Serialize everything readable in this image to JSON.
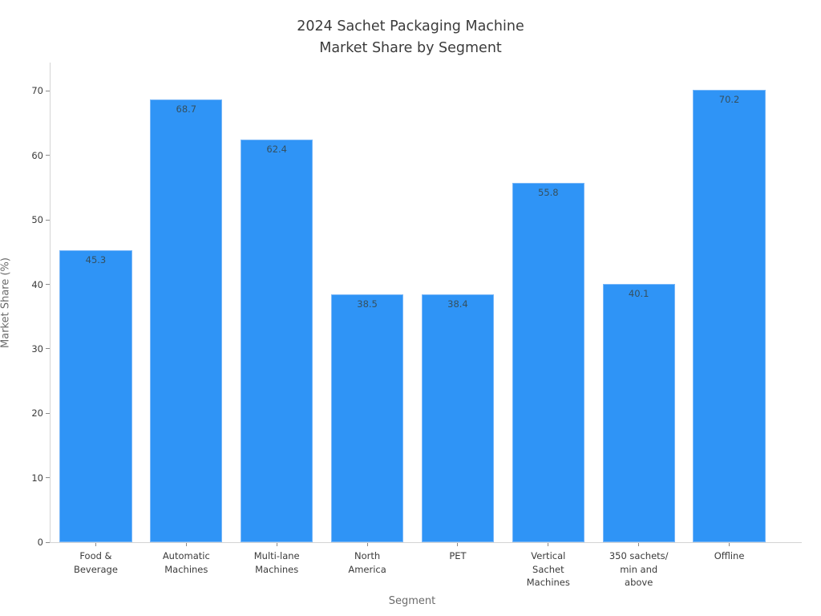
{
  "chart_data": {
    "type": "bar",
    "title": "2024 Sachet Packaging Machine\nMarket Share by Segment",
    "xlabel": "Segment",
    "ylabel": "Market Share (%)",
    "categories": [
      "Food &\nBeverage",
      "Automatic\nMachines",
      "Multi-lane\nMachines",
      "North\nAmerica",
      "PET",
      "Vertical\nSachet\nMachines",
      "350 sachets/\nmin and\nabove",
      "Offline"
    ],
    "values": [
      45.3,
      68.7,
      62.4,
      38.5,
      38.4,
      55.8,
      40.1,
      70.2
    ],
    "value_labels": [
      "45.3",
      "68.7",
      "62.4",
      "38.5",
      "38.4",
      "55.8",
      "40.1",
      "70.2"
    ],
    "yticks": [
      0,
      10,
      20,
      30,
      40,
      50,
      60,
      70
    ],
    "ylim": [
      0,
      74.4
    ],
    "grid": false,
    "legend": null,
    "colors": {
      "bar_fill": "#2f94f6",
      "bar_border": "#79b7f8",
      "value_label": "#35505f",
      "axis_line": "#d4d4d4",
      "tick_label": "#3b3b3b",
      "axis_title": "#6b6b6b",
      "title": "#3b3b3b",
      "background": "#ffffff"
    }
  }
}
